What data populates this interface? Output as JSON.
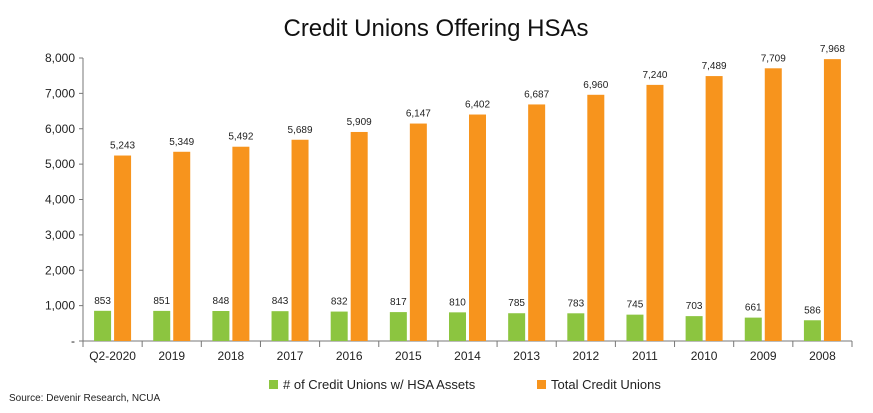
{
  "chart_data": {
    "type": "bar",
    "title": "Credit Unions Offering HSAs",
    "categories": [
      "Q2-2020",
      "2019",
      "2018",
      "2017",
      "2016",
      "2015",
      "2014",
      "2013",
      "2012",
      "2011",
      "2010",
      "2009",
      "2008"
    ],
    "series": [
      {
        "name": "# of Credit Unions w/ HSA Assets",
        "color": "#8cc540",
        "values": [
          853,
          851,
          848,
          843,
          832,
          817,
          810,
          785,
          783,
          745,
          703,
          661,
          586
        ],
        "labels": [
          "853",
          "851",
          "848",
          "843",
          "832",
          "817",
          "810",
          "785",
          "783",
          "745",
          "703",
          "661",
          "586"
        ]
      },
      {
        "name": "Total Credit Unions",
        "color": "#f7941d",
        "values": [
          5243,
          5349,
          5492,
          5689,
          5909,
          6147,
          6402,
          6687,
          6960,
          7240,
          7489,
          7709,
          7968
        ],
        "labels": [
          "5,243",
          "5,349",
          "5,492",
          "5,689",
          "5,909",
          "6,147",
          "6,402",
          "6,687",
          "6,960",
          "7,240",
          "7,489",
          "7,709",
          "7,968"
        ]
      }
    ],
    "ylim": [
      0,
      8000
    ],
    "yticks": [
      0,
      1000,
      2000,
      3000,
      4000,
      5000,
      6000,
      7000,
      8000
    ],
    "ytick_labels": [
      "-",
      "1,000",
      "2,000",
      "3,000",
      "4,000",
      "5,000",
      "6,000",
      "7,000",
      "8,000"
    ],
    "xlabel": "",
    "ylabel": "",
    "grid": false,
    "legend": "bottom"
  },
  "source": "Source: Devenir Research, NCUA"
}
